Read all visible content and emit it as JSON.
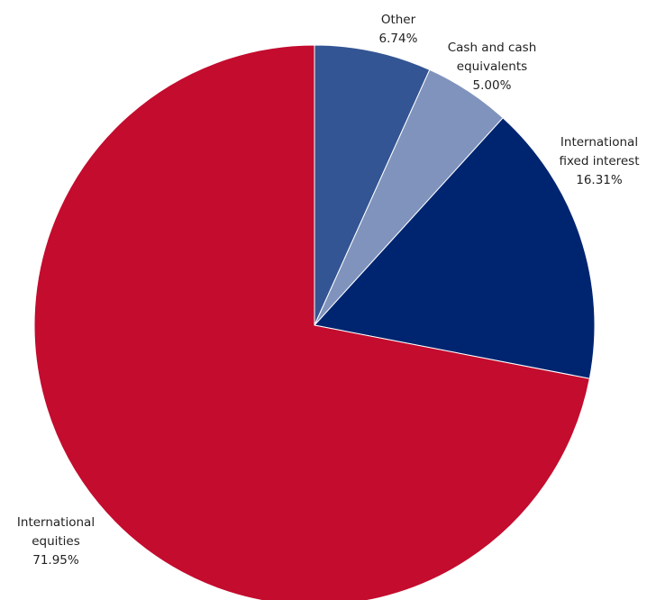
{
  "chart_data": {
    "type": "pie",
    "title": "",
    "start_angle": "12 o'clock",
    "direction": "clockwise",
    "legend": "none",
    "slices": [
      {
        "label": "Other",
        "value": 6.74,
        "value_label": "6.74%",
        "label_lines": [
          "Other"
        ],
        "color": "#345593"
      },
      {
        "label": "Cash and cash equivalents",
        "value": 5.0,
        "value_label": "5.00%",
        "label_lines": [
          "Cash and cash",
          "equivalents"
        ],
        "color": "#7f93bd"
      },
      {
        "label": "International fixed interest",
        "value": 16.31,
        "value_label": "16.31%",
        "label_lines": [
          "International",
          "fixed interest"
        ],
        "color": "#002570"
      },
      {
        "label": "International equities",
        "value": 71.95,
        "value_label": "71.95%",
        "label_lines": [
          "International",
          "equities"
        ],
        "color": "#c30c2e"
      }
    ]
  }
}
